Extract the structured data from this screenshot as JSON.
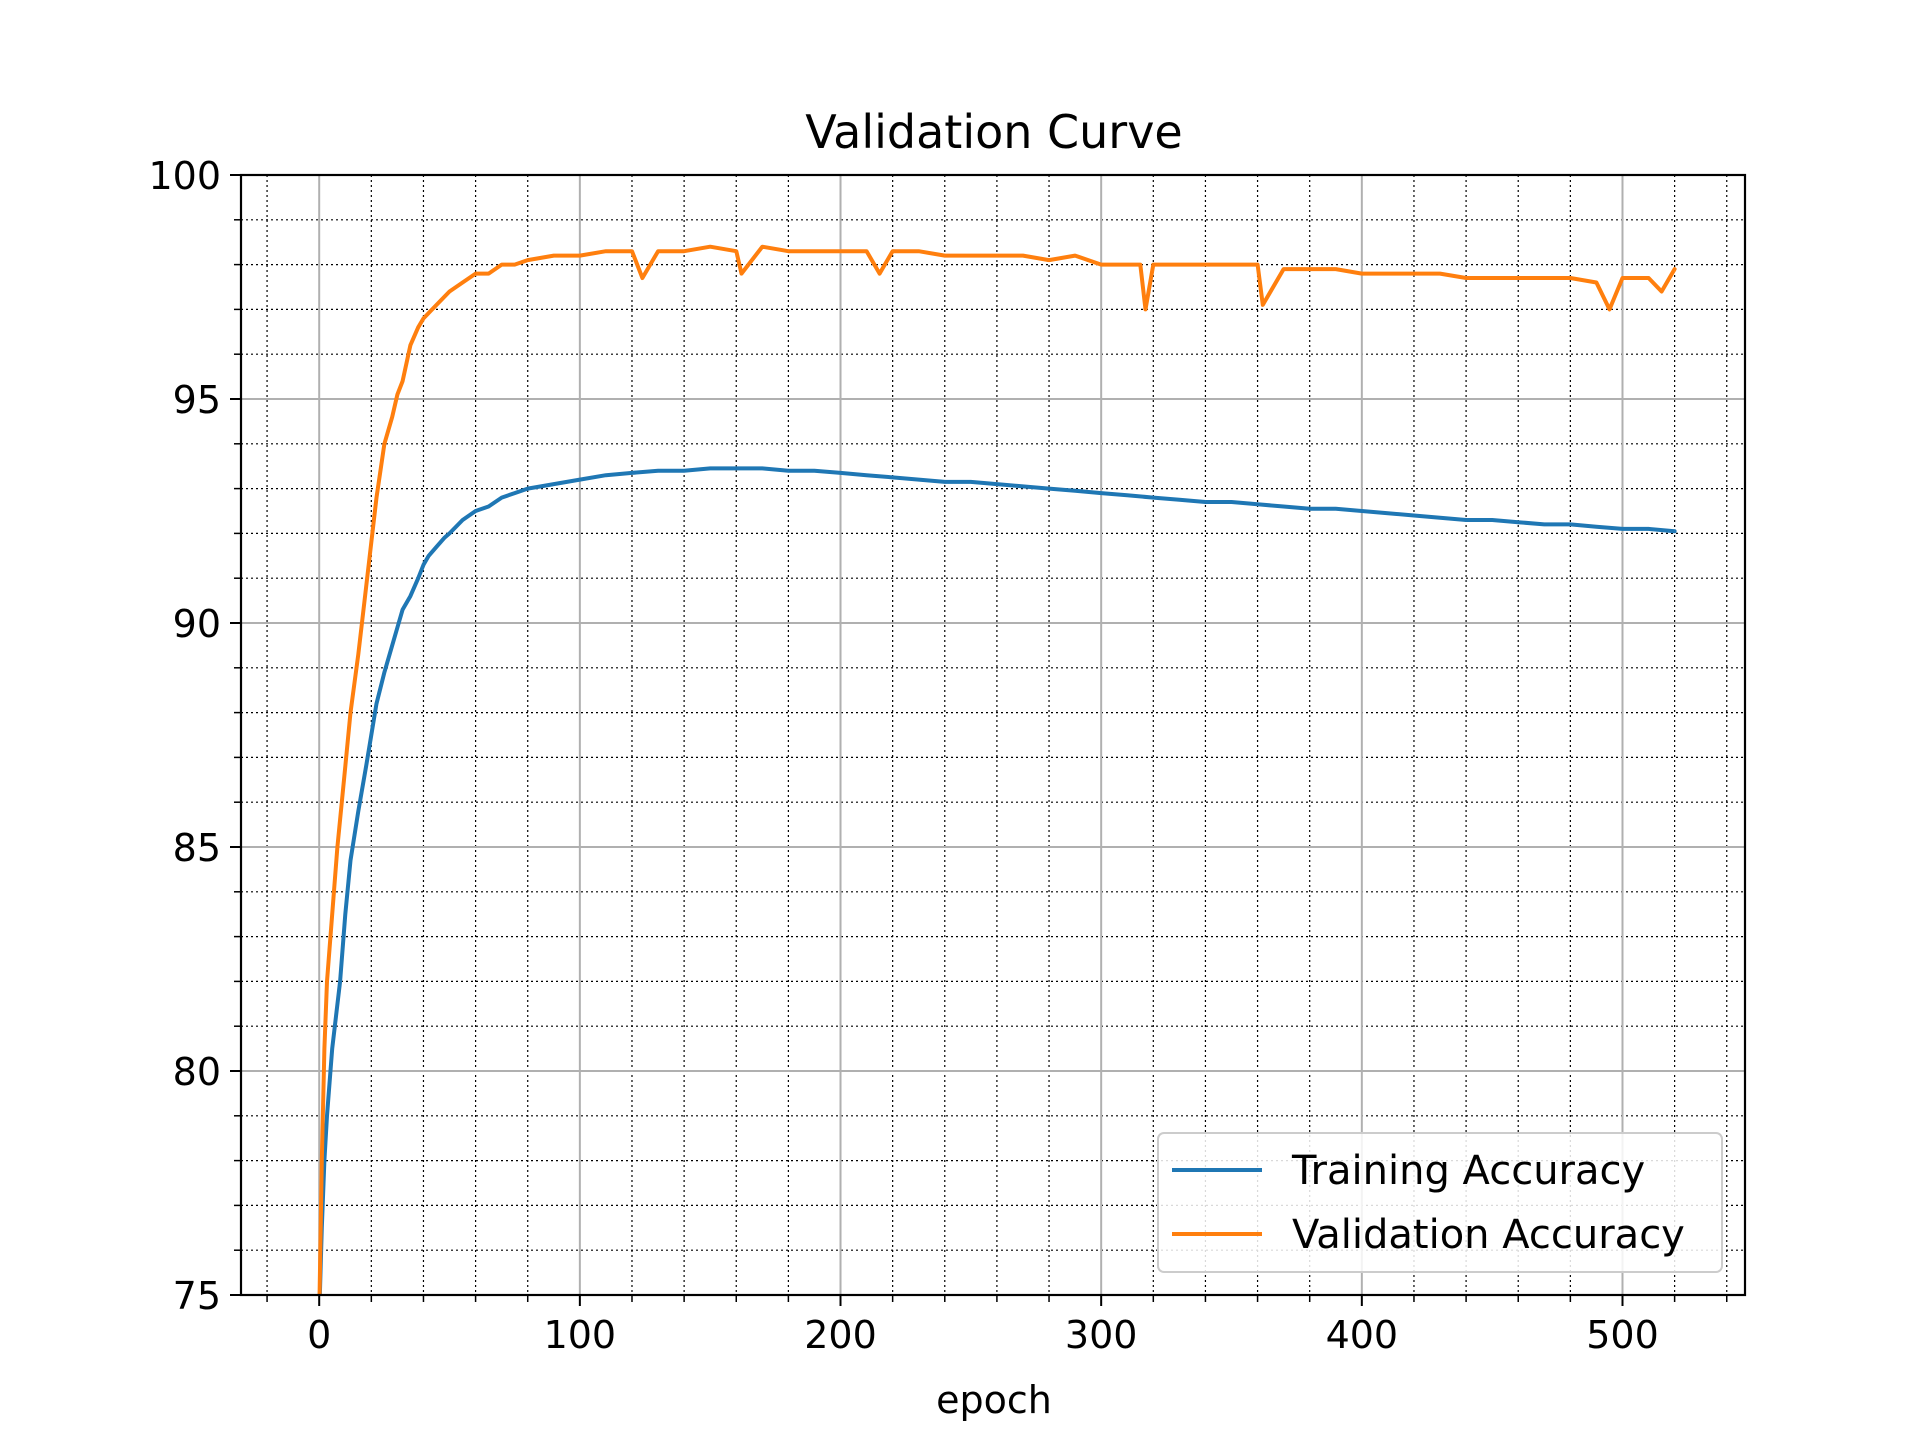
{
  "chart_data": {
    "type": "line",
    "title": "Validation Curve",
    "xlabel": "epoch",
    "ylabel": "",
    "xlim": [
      -30,
      547
    ],
    "ylim": [
      75,
      100
    ],
    "xticks": [
      0,
      100,
      200,
      300,
      400,
      500
    ],
    "yticks": [
      75,
      80,
      85,
      90,
      95,
      100
    ],
    "x_minor_step": 20,
    "y_minor_step": 1,
    "grid": true,
    "legend_position": "lower right",
    "series": [
      {
        "name": "Training Accuracy",
        "color": "#1f77b4",
        "x": [
          0,
          1,
          2,
          3,
          5,
          8,
          10,
          12,
          15,
          18,
          20,
          22,
          25,
          28,
          30,
          32,
          35,
          38,
          40,
          42,
          45,
          48,
          50,
          55,
          60,
          65,
          70,
          75,
          80,
          85,
          90,
          100,
          110,
          120,
          130,
          140,
          150,
          160,
          170,
          180,
          190,
          200,
          210,
          220,
          230,
          240,
          250,
          260,
          270,
          280,
          290,
          300,
          310,
          320,
          330,
          340,
          350,
          360,
          370,
          380,
          390,
          400,
          410,
          420,
          430,
          440,
          450,
          460,
          470,
          480,
          490,
          500,
          510,
          520
        ],
        "values": [
          74.5,
          76.5,
          78.0,
          79.0,
          80.5,
          82.0,
          83.5,
          84.7,
          85.8,
          86.8,
          87.5,
          88.2,
          88.9,
          89.5,
          89.9,
          90.3,
          90.6,
          91.0,
          91.3,
          91.5,
          91.7,
          91.9,
          92.0,
          92.3,
          92.5,
          92.6,
          92.8,
          92.9,
          93.0,
          93.05,
          93.1,
          93.2,
          93.3,
          93.35,
          93.4,
          93.4,
          93.45,
          93.45,
          93.45,
          93.4,
          93.4,
          93.35,
          93.3,
          93.25,
          93.2,
          93.15,
          93.15,
          93.1,
          93.05,
          93.0,
          92.95,
          92.9,
          92.85,
          92.8,
          92.75,
          92.7,
          92.7,
          92.65,
          92.6,
          92.55,
          92.55,
          92.5,
          92.45,
          92.4,
          92.35,
          92.3,
          92.3,
          92.25,
          92.2,
          92.2,
          92.15,
          92.1,
          92.1,
          92.05
        ]
      },
      {
        "name": "Validation Accuracy",
        "color": "#ff7f0e",
        "x": [
          0,
          1,
          2,
          3,
          5,
          7,
          10,
          12,
          15,
          18,
          20,
          22,
          25,
          28,
          30,
          32,
          35,
          38,
          40,
          45,
          50,
          55,
          60,
          65,
          70,
          75,
          80,
          90,
          100,
          110,
          120,
          124,
          130,
          140,
          150,
          160,
          162,
          170,
          180,
          190,
          200,
          210,
          215,
          220,
          230,
          240,
          250,
          260,
          270,
          280,
          290,
          300,
          310,
          315,
          317,
          320,
          330,
          340,
          350,
          360,
          362,
          370,
          380,
          390,
          400,
          410,
          420,
          430,
          440,
          450,
          460,
          470,
          480,
          490,
          495,
          500,
          510,
          515,
          520
        ],
        "values": [
          74.5,
          78.0,
          80.5,
          82.0,
          83.5,
          85.0,
          86.8,
          88.0,
          89.3,
          90.8,
          91.8,
          92.8,
          94.0,
          94.6,
          95.1,
          95.4,
          96.2,
          96.6,
          96.8,
          97.1,
          97.4,
          97.6,
          97.8,
          97.8,
          98.0,
          98.0,
          98.1,
          98.2,
          98.2,
          98.3,
          98.3,
          97.7,
          98.3,
          98.3,
          98.4,
          98.3,
          97.8,
          98.4,
          98.3,
          98.3,
          98.3,
          98.3,
          97.8,
          98.3,
          98.3,
          98.2,
          98.2,
          98.2,
          98.2,
          98.1,
          98.2,
          98.0,
          98.0,
          98.0,
          97.0,
          98.0,
          98.0,
          98.0,
          98.0,
          98.0,
          97.1,
          97.9,
          97.9,
          97.9,
          97.8,
          97.8,
          97.8,
          97.8,
          97.7,
          97.7,
          97.7,
          97.7,
          97.7,
          97.6,
          97.0,
          97.7,
          97.7,
          97.4,
          97.9
        ]
      }
    ]
  }
}
